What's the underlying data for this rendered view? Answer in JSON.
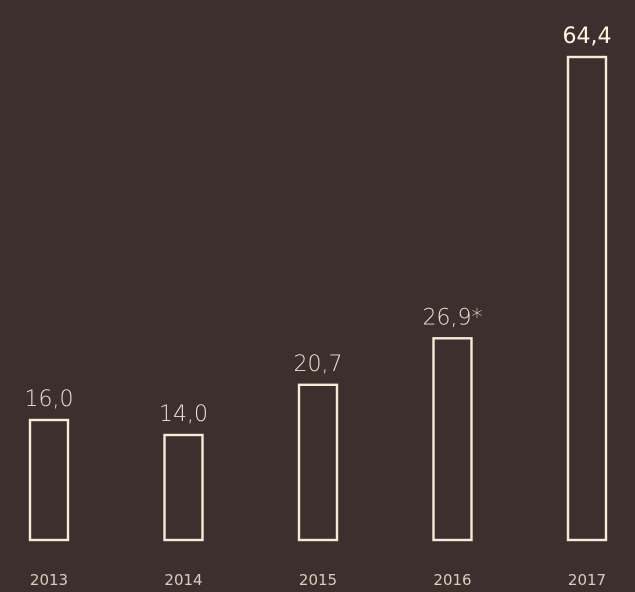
{
  "chart_data": {
    "type": "bar",
    "categories": [
      "2013",
      "2014",
      "2015",
      "2016",
      "2017"
    ],
    "values": [
      16.0,
      14.0,
      20.7,
      26.9,
      64.4
    ],
    "value_labels": [
      "16,0",
      "14,0",
      "20,7",
      "26,9*",
      "64,4"
    ],
    "highlighted_index": 4,
    "ylim": [
      0,
      64.4
    ],
    "grid": false,
    "title": "",
    "xlabel": "",
    "ylabel": ""
  },
  "colors": {
    "background": "#3b302d",
    "bar_outline": "#f4ecd3",
    "value_text": "#ece4cf",
    "value_text_highlight": "#fff6de",
    "category_text": "#d8cfbb"
  }
}
